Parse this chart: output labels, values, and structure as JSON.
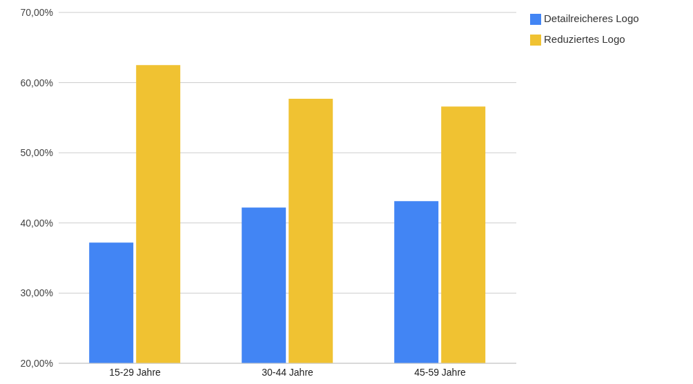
{
  "chart_data": {
    "type": "bar",
    "categories": [
      "15-29 Jahre",
      "30-44 Jahre",
      "45-59 Jahre"
    ],
    "series": [
      {
        "name": "Detailreicheres Logo",
        "color": "#4285f4",
        "values": [
          37.2,
          42.2,
          43.1
        ]
      },
      {
        "name": "Reduziertes Logo",
        "color": "#f0c232",
        "values": [
          62.5,
          57.7,
          56.6
        ]
      }
    ],
    "ylim": [
      20,
      70
    ],
    "yticks": [
      {
        "value": 20,
        "label": "20,00%"
      },
      {
        "value": 30,
        "label": "30,00%"
      },
      {
        "value": 40,
        "label": "40,00%"
      },
      {
        "value": 50,
        "label": "50,00%"
      },
      {
        "value": 60,
        "label": "60,00%"
      },
      {
        "value": 70,
        "label": "70,00%"
      }
    ],
    "grid": "y",
    "legend": "top right"
  }
}
